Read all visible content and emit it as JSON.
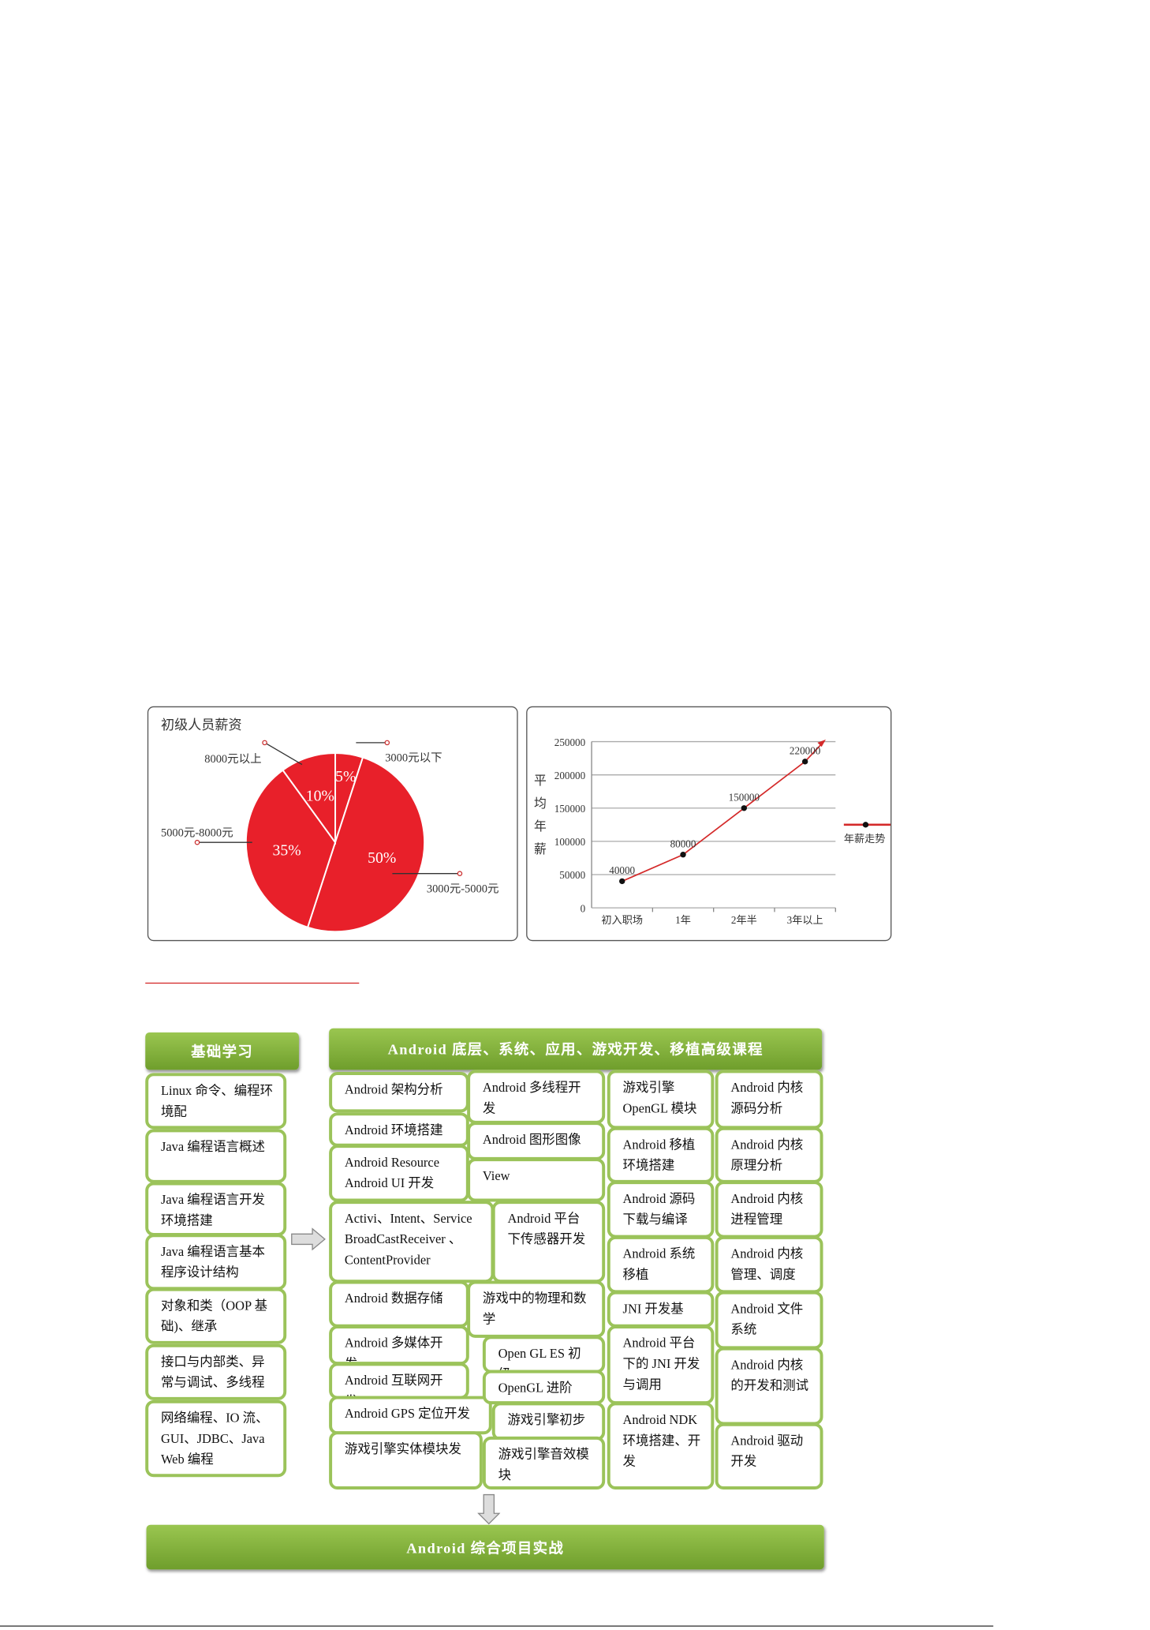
{
  "chart_data": [
    {
      "type": "pie",
      "title": "初级人员薪资",
      "slices": [
        {
          "label": "3000元以下",
          "value": 5,
          "value_label": "5%"
        },
        {
          "label": "3000元-5000元",
          "value": 50,
          "value_label": "50%"
        },
        {
          "label": "5000元-8000元",
          "value": 35,
          "value_label": "35%"
        },
        {
          "label": "8000元以上",
          "value": 10,
          "value_label": "10%"
        }
      ],
      "colors": {
        "slice": "#e8202a",
        "separator": "#ffffff"
      }
    },
    {
      "type": "line",
      "ylabel": "平均年薪",
      "categories": [
        "初入职场",
        "1年",
        "2年半",
        "3年以上"
      ],
      "series": [
        {
          "name": "年薪走势",
          "values": [
            40000,
            80000,
            150000,
            220000
          ],
          "data_labels": [
            "40000",
            "80000",
            "150000",
            "220000"
          ]
        }
      ],
      "ylim": [
        0,
        250000
      ],
      "yticks": [
        "0",
        "50000",
        "100000",
        "150000",
        "200000",
        "250000"
      ],
      "grid": true,
      "legend": "right",
      "colors": {
        "line": "#d42a2a",
        "marker": "#111111"
      }
    }
  ],
  "diagram": {
    "left_header": "基础学习",
    "right_header": "Android 底层、系统、应用、游戏开发、移植高级课程",
    "bottom_header": "Android 综合项目实战",
    "left_items": [
      "Linux 命令、编程环境配",
      "Java 编程语言概述",
      "Java 编程语言开发环境搭建",
      "Java 编程语言基本程序设计结构",
      "对象和类（OOP 基础)、继承",
      "接口与内部类、异常与调试、多线程",
      "网络编程、IO 流、GUI、JDBC、Java Web 编程"
    ],
    "col1": [
      "Android 架构分析",
      "Android 环境搭建",
      "Android Resource Android UI 开发",
      "Activi、Intent、Service BroadCastReceiver 、ContentProvider",
      "Android 数据存储",
      "Android 多媒体开发",
      "Android 互联网开发",
      "Android GPS 定位开发",
      "游戏引擎实体模块发"
    ],
    "col2": [
      "Android 多线程开发",
      "Android 图形图像",
      "View",
      "Android 平台下传感器开发",
      "游戏中的物理和数学",
      "Open GL ES 初级",
      "OpenGL 进阶",
      "游戏引擎初步",
      "游戏引擎音效模块"
    ],
    "col3": [
      "游戏引擎 OpenGL 模块",
      "Android 移植环境搭建",
      "Android 源码下载与编译",
      "Android 系统移植",
      "JNI 开发基",
      "Android 平台下的 JNI 开发与调用",
      "Android NDK 环境搭建、开发"
    ],
    "col4": [
      "Android 内核源码分析",
      "Android 内核原理分析",
      "Android 内核进程管理",
      "Android 内核管理、调度",
      "Android 文件系统",
      "Android 内核的开发和测试",
      "Android 驱动开发"
    ]
  }
}
